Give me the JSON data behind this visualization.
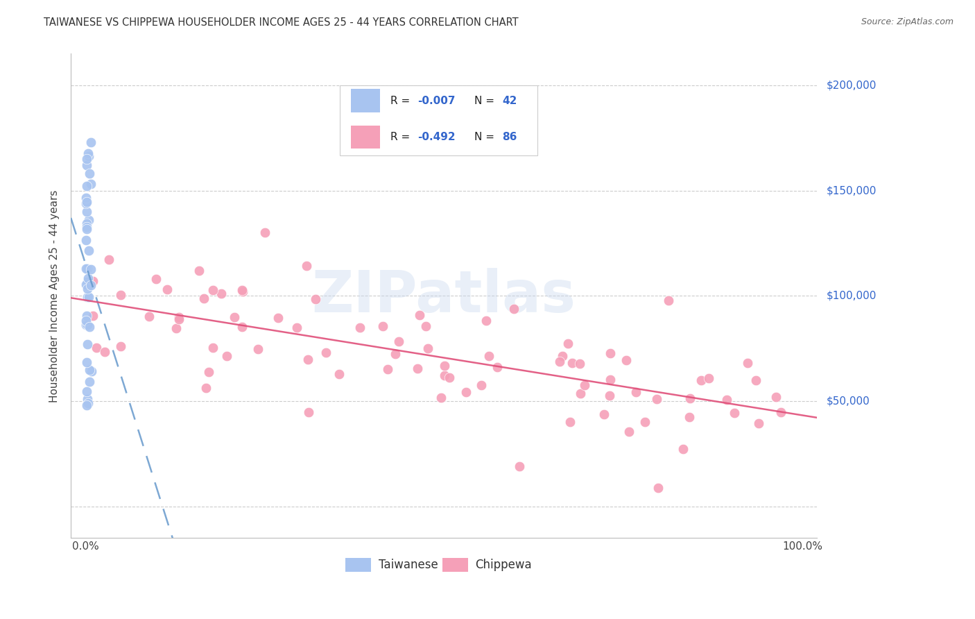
{
  "title": "TAIWANESE VS CHIPPEWA HOUSEHOLDER INCOME AGES 25 - 44 YEARS CORRELATION CHART",
  "source": "Source: ZipAtlas.com",
  "ylabel": "Householder Income Ages 25 - 44 years",
  "watermark": "ZIPatlas",
  "taiwanese_R": -0.007,
  "taiwanese_N": 42,
  "chippewa_R": -0.492,
  "chippewa_N": 86,
  "taiwanese_color": "#a8c4f0",
  "chippewa_color": "#f5a0b8",
  "taiwanese_line_color": "#6699cc",
  "chippewa_line_color": "#e0507a",
  "ytick_values": [
    0,
    50000,
    100000,
    150000,
    200000
  ],
  "yright_labels": [
    "$200,000",
    "$150,000",
    "$100,000",
    "$50,000"
  ],
  "yright_values": [
    200000,
    150000,
    100000,
    50000
  ],
  "ymin": -15000,
  "ymax": 215000,
  "xmin": -0.02,
  "xmax": 1.02,
  "bottom_label1": "Taiwanese",
  "bottom_label2": "Chippewa"
}
